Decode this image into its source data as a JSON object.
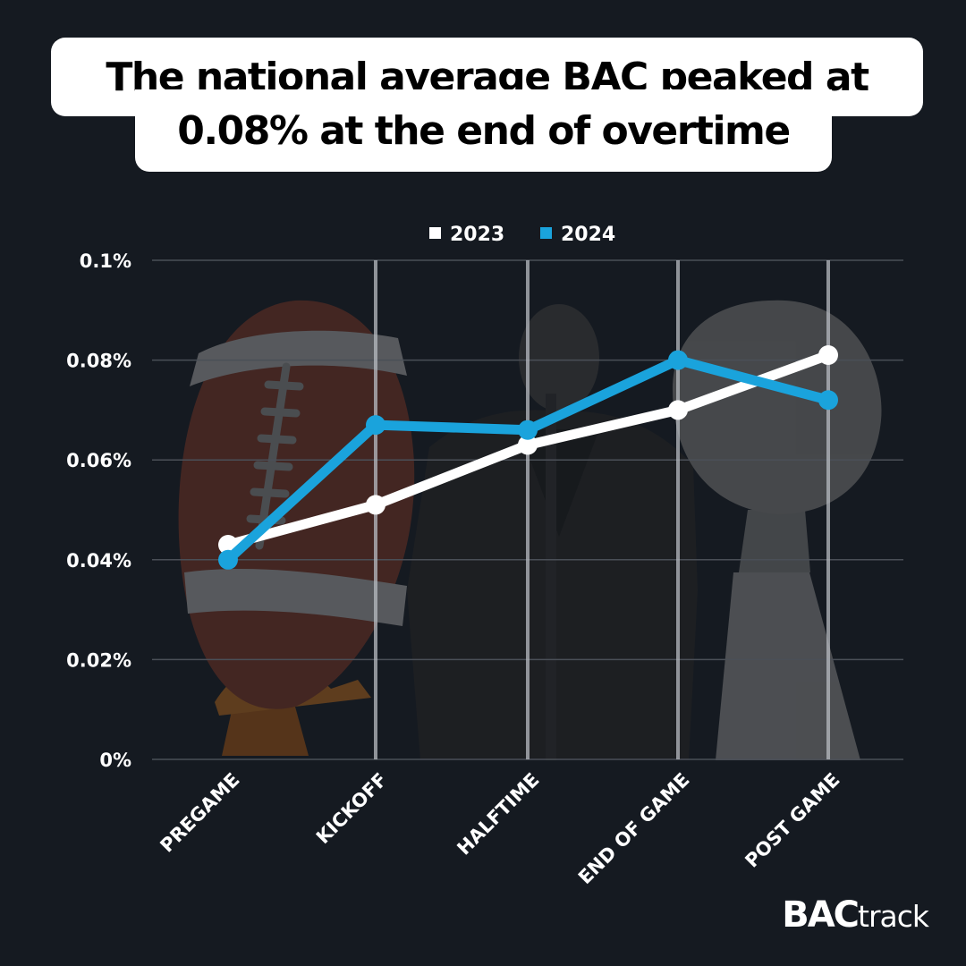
{
  "title": {
    "line1": "The national average BAC peaked at",
    "line2": "0.08% at the end of overtime"
  },
  "brand": {
    "bold": "BAC",
    "light": "track"
  },
  "colors": {
    "background": "#151a21",
    "series_2023": "#ffffff",
    "series_2024": "#1aa3dc",
    "grid": "#4a4f57"
  },
  "chart_data": {
    "type": "line",
    "categories": [
      "PREGAME",
      "KICKOFF",
      "HALFTIME",
      "END OF GAME",
      "POST GAME"
    ],
    "series": [
      {
        "name": "2023",
        "values": [
          0.043,
          0.051,
          0.063,
          0.07,
          0.081
        ]
      },
      {
        "name": "2024",
        "values": [
          0.04,
          0.067,
          0.066,
          0.08,
          0.072
        ]
      }
    ],
    "yticks": [
      "0%",
      "0.02%",
      "0.04%",
      "0.06%",
      "0.08%",
      "0.1%"
    ],
    "ylim": [
      0,
      0.1
    ],
    "legend_position": "top-center",
    "grid": true,
    "background_images": [
      "football-on-tee",
      "halftime-performer",
      "lombardi-trophy"
    ]
  }
}
